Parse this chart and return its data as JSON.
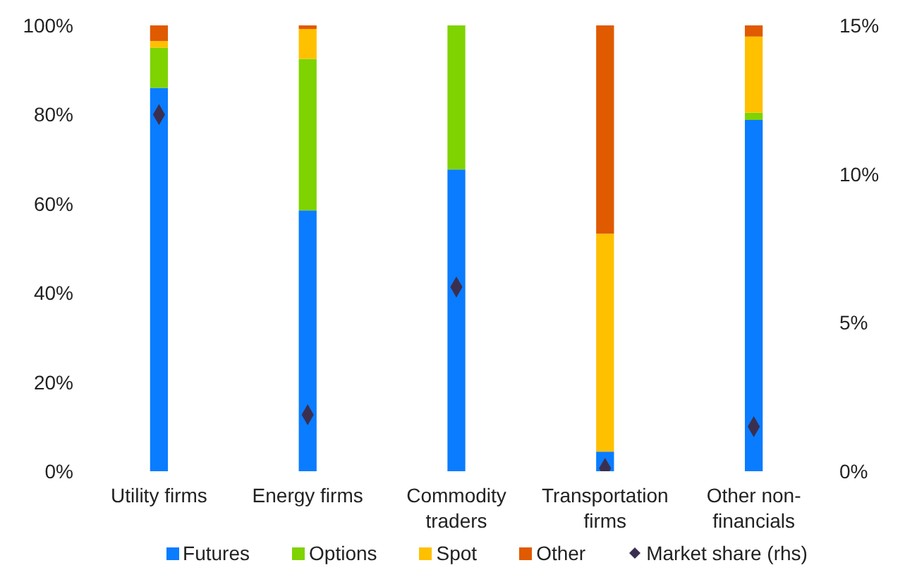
{
  "chart_data": {
    "type": "bar",
    "stacked": true,
    "categories": [
      "Utility firms",
      "Energy firms",
      "Commodity traders",
      "Transportation firms",
      "Other non-financials"
    ],
    "series": [
      {
        "name": "Futures",
        "color": "#0a7cff",
        "values": [
          86,
          58.5,
          67.7,
          4.4,
          78.8
        ]
      },
      {
        "name": "Options",
        "color": "#7ed300",
        "values": [
          9,
          34,
          32.3,
          0,
          1.6
        ]
      },
      {
        "name": "Spot",
        "color": "#ffc000",
        "values": [
          1.5,
          6.7,
          0,
          48.9,
          17.1
        ]
      },
      {
        "name": "Other",
        "color": "#e05a00",
        "values": [
          3.5,
          0.8,
          0,
          46.7,
          2.5
        ]
      },
      {
        "name": "Market share (rhs)",
        "type": "scatter",
        "axis": "y2",
        "color": "#3b2f4f",
        "marker": "diamond",
        "values": [
          12,
          1.9,
          6.2,
          0.1,
          1.5
        ]
      }
    ],
    "ylim": [
      0,
      100
    ],
    "yticks": [
      {
        "value": 0,
        "label": "0%"
      },
      {
        "value": 20,
        "label": "20%"
      },
      {
        "value": 40,
        "label": "40%"
      },
      {
        "value": 60,
        "label": "60%"
      },
      {
        "value": 80,
        "label": "80%"
      },
      {
        "value": 100,
        "label": "100%"
      }
    ],
    "y2lim": [
      0,
      15
    ],
    "y2ticks": [
      {
        "value": 0,
        "label": "0%"
      },
      {
        "value": 5,
        "label": "5%"
      },
      {
        "value": 10,
        "label": "10%"
      },
      {
        "value": 15,
        "label": "15%"
      }
    ],
    "grid": false,
    "legend": "bottom"
  }
}
